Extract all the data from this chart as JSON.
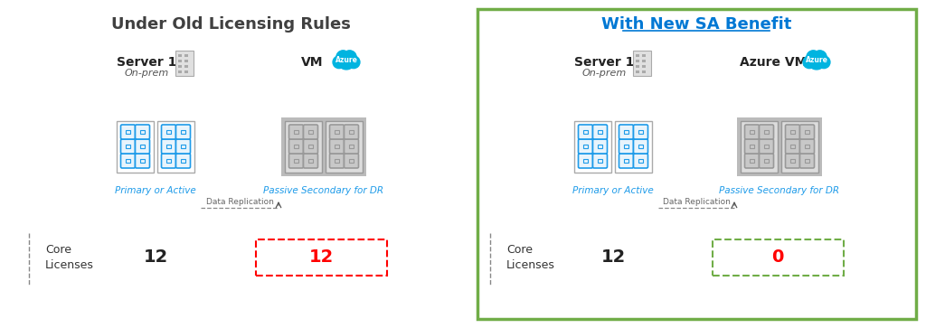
{
  "title_left": "Under Old Licensing Rules",
  "title_right": "With New SA Benefit",
  "title_left_color": "#404040",
  "title_right_color": "#0078D4",
  "bg_color": "#ffffff",
  "green_box_color": "#70AD47",
  "server_label_left": "Server 1",
  "server_sublabel_left": "On-prem",
  "vm_label_left": "VM",
  "server_label_right": "Server 1",
  "server_sublabel_right": "On-prem",
  "vm_label_right": "Azure VM",
  "primary_label": "Primary or Active",
  "passive_label": "Passive Secondary for DR",
  "data_replication_label": "Data Replication",
  "core_licenses_label": "Core\nLicenses",
  "left_primary_value": "12",
  "left_dr_value": "12",
  "right_primary_value": "12",
  "right_dr_value": "0",
  "left_dr_box_color": "#FF0000",
  "right_dr_box_color": "#70AD47",
  "primary_chip_color": "#1E9BE9",
  "passive_chip_color": "#999999",
  "chip_bg_active": "#E8F4FC",
  "chip_bg_passive": "#C8C8C8",
  "azure_cloud_color": "#00B4E0",
  "value_color": "#222222"
}
